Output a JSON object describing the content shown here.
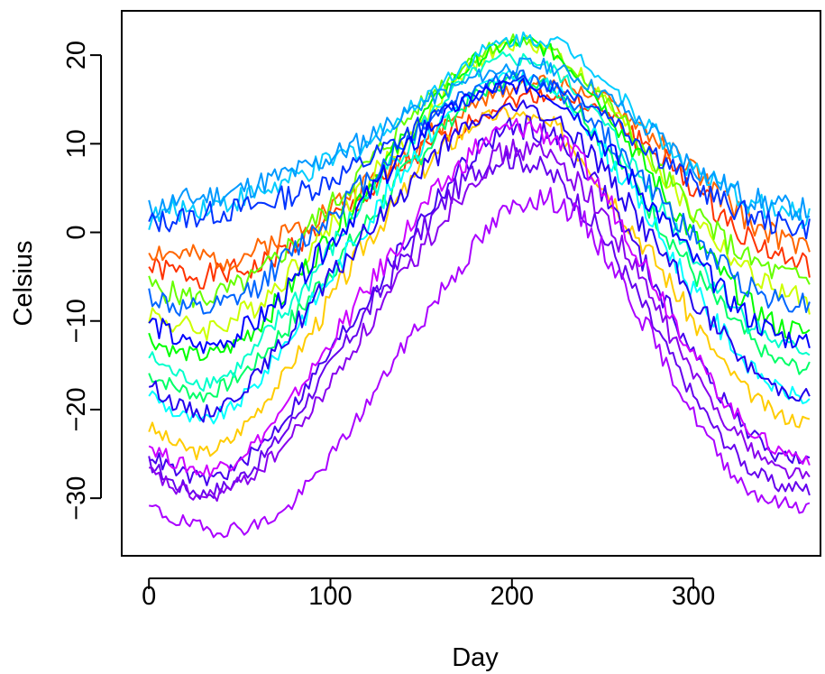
{
  "chart_data": {
    "type": "line",
    "title": "",
    "xlabel": "Day",
    "ylabel": "Celsius",
    "xlim": [
      -15,
      370
    ],
    "ylim": [
      -36.5,
      25
    ],
    "xticks": [
      0,
      100,
      200,
      300
    ],
    "yticks": [
      -30,
      -20,
      -10,
      0,
      10,
      20
    ],
    "grid": false,
    "legend": "none",
    "x": [
      0,
      15,
      30,
      45,
      60,
      75,
      90,
      105,
      120,
      135,
      150,
      165,
      180,
      195,
      210,
      225,
      240,
      255,
      270,
      285,
      300,
      315,
      330,
      345,
      364
    ],
    "series": [
      {
        "color": "#FF3300",
        "values": [
          -4,
          -4.5,
          -5,
          -4.5,
          -4,
          -2,
          0,
          2,
          4,
          6.5,
          9,
          11,
          13,
          14.5,
          15.5,
          15.5,
          14.5,
          13,
          10.5,
          8,
          5,
          2,
          -0.5,
          -2.5,
          -4
        ]
      },
      {
        "color": "#FF6600",
        "values": [
          -2,
          -2.5,
          -3,
          -3,
          -2,
          0,
          1.5,
          3.5,
          5.5,
          8,
          10,
          12.5,
          14.5,
          16,
          17,
          17,
          16,
          14.5,
          12,
          9.5,
          7,
          4,
          1.5,
          -0.5,
          -2
        ]
      },
      {
        "color": "#FFCC00",
        "values": [
          -22,
          -24,
          -25,
          -23.5,
          -20,
          -16,
          -11,
          -6,
          -1,
          3,
          7,
          10,
          12.5,
          13.5,
          13,
          11.5,
          8.5,
          4,
          -0.5,
          -5,
          -10,
          -14.5,
          -18,
          -20.5,
          -21.5
        ]
      },
      {
        "color": "#CCFF00",
        "values": [
          -9,
          -10.5,
          -11,
          -10,
          -8,
          -5,
          -1.5,
          2,
          5.5,
          9,
          12.5,
          16,
          19,
          21,
          21.5,
          20,
          17.5,
          14,
          10,
          6,
          2,
          -1.5,
          -4.5,
          -6.5,
          -8
        ]
      },
      {
        "color": "#66FF00",
        "values": [
          -6,
          -7,
          -7.5,
          -6.5,
          -5,
          -2,
          1,
          4,
          7.5,
          11,
          14.5,
          17.5,
          20,
          21.5,
          21.5,
          20,
          17.5,
          14,
          10,
          6,
          2.5,
          -0.5,
          -3,
          -4.5,
          -5.5
        ]
      },
      {
        "color": "#00FF00",
        "values": [
          -12,
          -13.5,
          -14,
          -13,
          -10.5,
          -7,
          -3,
          1,
          5,
          9,
          13,
          16.5,
          19.5,
          21,
          21.5,
          20,
          17,
          13,
          8.5,
          4,
          -0.5,
          -4.5,
          -8,
          -10.5,
          -11.5
        ]
      },
      {
        "color": "#00FF66",
        "values": [
          -16,
          -17.5,
          -18.5,
          -17,
          -14.5,
          -11,
          -7,
          -3,
          1,
          5,
          9,
          12.5,
          15.5,
          17,
          17.5,
          16,
          13,
          9,
          4.5,
          0,
          -4.5,
          -8.5,
          -12,
          -14.5,
          -15.5
        ]
      },
      {
        "color": "#00FFCC",
        "values": [
          -14,
          -16,
          -17,
          -16,
          -13,
          -9,
          -5,
          -0.5,
          4,
          8,
          12,
          15.5,
          18,
          19.5,
          19.5,
          18,
          15,
          11,
          6.5,
          2,
          -2.5,
          -6.5,
          -10,
          -12.5,
          -13.5
        ]
      },
      {
        "color": "#00FFFF",
        "values": [
          -18,
          -20.5,
          -21.5,
          -20,
          -17,
          -12.5,
          -8,
          -3.5,
          1,
          5.5,
          10,
          13.5,
          16,
          17.5,
          17.5,
          16,
          12.5,
          8,
          3.5,
          -1.5,
          -6.5,
          -11,
          -15,
          -17.5,
          -19
        ]
      },
      {
        "color": "#00CCFF",
        "values": [
          1.5,
          2.5,
          3,
          3.5,
          4.5,
          5.5,
          7,
          8.5,
          10,
          12.5,
          15,
          17.5,
          20,
          21.5,
          22,
          21.5,
          19.5,
          16.5,
          13,
          10,
          7,
          5,
          3.5,
          2.5,
          1.5
        ]
      },
      {
        "color": "#0099FF",
        "values": [
          2.5,
          3.5,
          4,
          4.5,
          5.5,
          6.5,
          7.5,
          9,
          10.5,
          12.5,
          14.5,
          16,
          17.5,
          18.5,
          19,
          18.5,
          17,
          15,
          12.5,
          10,
          7.5,
          5.5,
          4,
          3,
          2.5
        ]
      },
      {
        "color": "#0066FF",
        "values": [
          -7,
          -8.5,
          -9,
          -8,
          -6,
          -3,
          0,
          3,
          6,
          9,
          12,
          14.5,
          16.5,
          17.5,
          17.5,
          16,
          13.5,
          10,
          6.5,
          3,
          -0.5,
          -3.5,
          -6,
          -7.5,
          -8
        ]
      },
      {
        "color": "#0033FF",
        "values": [
          1,
          1.5,
          2,
          2.5,
          3,
          4,
          5,
          6.5,
          8,
          10,
          12,
          14,
          15.5,
          16.5,
          17,
          16.5,
          15,
          13,
          10.5,
          8,
          5.5,
          3.5,
          2,
          1,
          0.5
        ]
      },
      {
        "color": "#0000FF",
        "values": [
          -10,
          -12,
          -13,
          -12,
          -10,
          -7,
          -3.5,
          0,
          4,
          7.5,
          11,
          13.5,
          15.5,
          16.5,
          16.5,
          15,
          12.5,
          9,
          5,
          1,
          -3,
          -6.5,
          -9.5,
          -11.5,
          -12.5
        ]
      },
      {
        "color": "#2200EE",
        "values": [
          -17,
          -19.5,
          -20.5,
          -19,
          -16,
          -12,
          -8,
          -4,
          0,
          3.5,
          7,
          10,
          12.5,
          14,
          14,
          12.5,
          10,
          6,
          1.5,
          -3,
          -7.5,
          -11.5,
          -15,
          -17.5,
          -18.5
        ]
      },
      {
        "color": "#4400EE",
        "values": [
          -25,
          -27,
          -28,
          -27,
          -24.5,
          -21,
          -16.5,
          -12,
          -7.5,
          -3,
          1.5,
          5.5,
          9,
          11.5,
          12,
          10.5,
          7.5,
          3,
          -2.5,
          -8,
          -13.5,
          -18.5,
          -22.5,
          -25,
          -26
        ]
      },
      {
        "color": "#6600EE",
        "values": [
          -26,
          -28.5,
          -29.5,
          -28.5,
          -26,
          -22.5,
          -18,
          -13.5,
          -9,
          -4.5,
          0,
          4,
          7,
          8.5,
          8,
          6,
          2.5,
          -2,
          -7.5,
          -13,
          -18.5,
          -23,
          -26.5,
          -28.5,
          -29
        ]
      },
      {
        "color": "#8800EE",
        "values": [
          -27,
          -29,
          -30,
          -29,
          -27,
          -24,
          -20,
          -15.5,
          -11,
          -6.5,
          -2,
          2.5,
          6.5,
          9,
          9.5,
          8,
          5,
          0.5,
          -5,
          -10.5,
          -16,
          -20.5,
          -24,
          -26.5,
          -27.5
        ]
      },
      {
        "color": "#AA00FF",
        "values": [
          -31,
          -32.5,
          -33.5,
          -33.5,
          -33,
          -31.5,
          -28,
          -24,
          -19.5,
          -14.5,
          -10,
          -5.5,
          -1.5,
          2,
          4,
          3.5,
          1,
          -3.5,
          -9,
          -15,
          -20.5,
          -25.5,
          -29,
          -30.5,
          -31
        ]
      },
      {
        "color": "#CC00FF",
        "values": [
          -24,
          -26,
          -27,
          -26,
          -23.5,
          -20,
          -15.5,
          -11,
          -6.5,
          -2,
          2.5,
          6,
          9.5,
          11.5,
          12,
          10.5,
          7.5,
          3,
          -2.5,
          -8,
          -13.5,
          -18.5,
          -22,
          -24.5,
          -25.5
        ]
      }
    ]
  }
}
